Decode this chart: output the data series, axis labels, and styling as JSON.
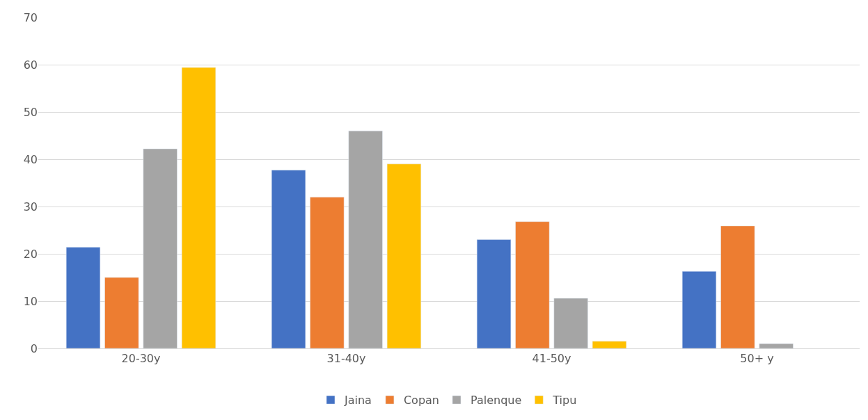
{
  "chart_data": {
    "type": "bar",
    "categories": [
      "20-30y",
      "31-40y",
      "41-50y",
      "50+ y"
    ],
    "series": [
      {
        "name": "Jaina",
        "color": "#4472c4",
        "values": [
          21.4,
          37.7,
          23.0,
          16.3
        ]
      },
      {
        "name": "Copan",
        "color": "#ed7d31",
        "values": [
          15.0,
          32.0,
          26.8,
          25.9
        ]
      },
      {
        "name": "Palenque",
        "color": "#a5a5a5",
        "values": [
          42.2,
          46.0,
          10.6,
          1.0
        ]
      },
      {
        "name": "Tipu",
        "color": "#ffc000",
        "values": [
          59.4,
          39.0,
          1.5,
          null
        ]
      }
    ],
    "ylim": [
      0,
      70
    ],
    "yticks": [
      0,
      10,
      20,
      30,
      40,
      50,
      60,
      70
    ],
    "grid": "y",
    "legend": "bottom"
  }
}
